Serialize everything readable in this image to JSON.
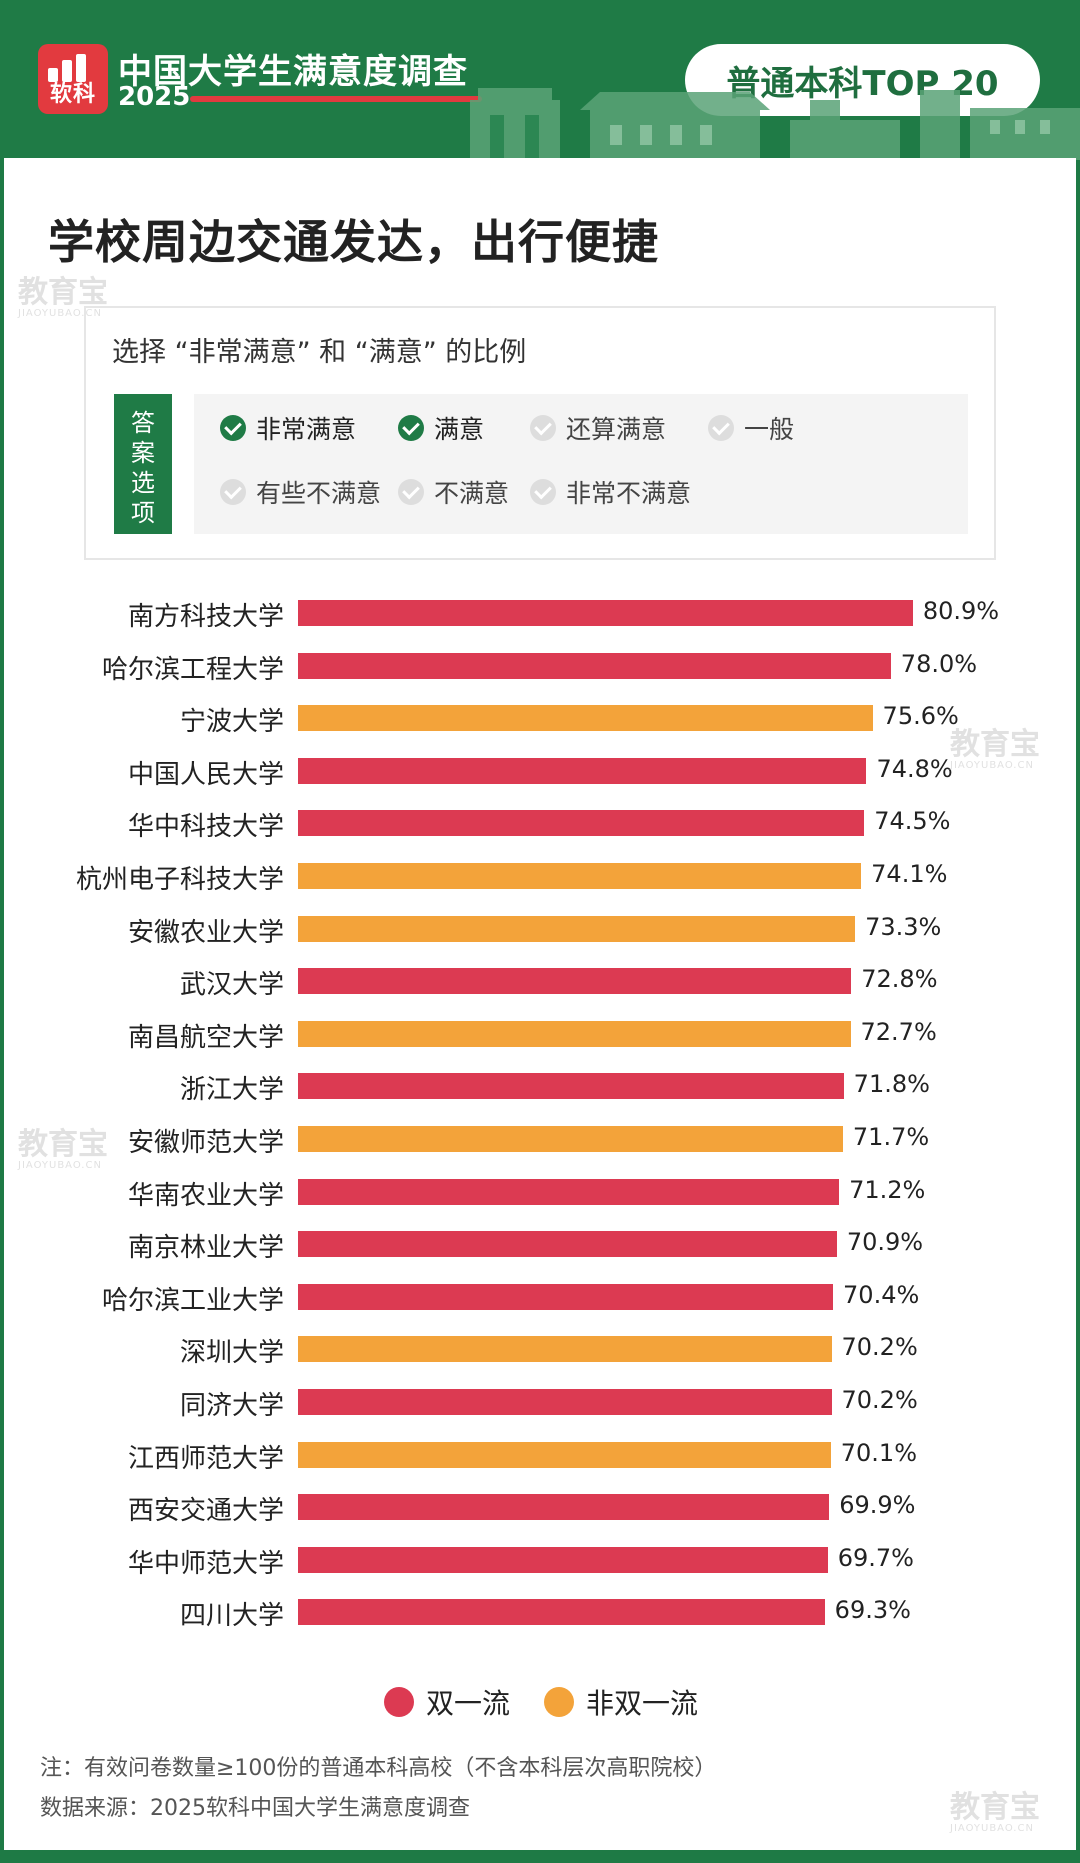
{
  "header": {
    "logo_text": "软科",
    "title": "中国大学生满意度调查",
    "year": "2025",
    "badge": "普通本科TOP 20"
  },
  "main_title": "学校周边交通发达，出行便捷",
  "question": {
    "text": "选择 “非常满意” 和 “满意” 的比例",
    "tag": "答案选项",
    "options": [
      {
        "label": "非常满意",
        "selected": true
      },
      {
        "label": "满意",
        "selected": true
      },
      {
        "label": "还算满意",
        "selected": false
      },
      {
        "label": "一般",
        "selected": false
      },
      {
        "label": "有些不满意",
        "selected": false
      },
      {
        "label": "不满意",
        "selected": false
      },
      {
        "label": "非常不满意",
        "selected": false
      }
    ]
  },
  "colors": {
    "double_first_class": "#dc3a52",
    "non_double_first_class": "#f3a33a",
    "brand_green": "#1f7b46",
    "brand_red": "#e23a3f"
  },
  "chart_data": {
    "type": "bar",
    "orientation": "horizontal",
    "categories": [
      "南方科技大学",
      "哈尔滨工程大学",
      "宁波大学",
      "中国人民大学",
      "华中科技大学",
      "杭州电子科技大学",
      "安徽农业大学",
      "武汉大学",
      "南昌航空大学",
      "浙江大学",
      "安徽师范大学",
      "华南农业大学",
      "南京林业大学",
      "哈尔滨工业大学",
      "深圳大学",
      "同济大学",
      "江西师范大学",
      "西安交通大学",
      "华中师范大学",
      "四川大学"
    ],
    "values": [
      80.9,
      78.0,
      75.6,
      74.8,
      74.5,
      74.1,
      73.3,
      72.8,
      72.7,
      71.8,
      71.7,
      71.2,
      70.9,
      70.4,
      70.2,
      70.2,
      70.1,
      69.9,
      69.7,
      69.3
    ],
    "value_labels": [
      "80.9%",
      "78.0%",
      "75.6%",
      "74.8%",
      "74.5%",
      "74.1%",
      "73.3%",
      "72.8%",
      "72.7%",
      "71.8%",
      "71.7%",
      "71.2%",
      "70.9%",
      "70.4%",
      "70.2%",
      "70.2%",
      "70.1%",
      "69.9%",
      "69.7%",
      "69.3%"
    ],
    "groups": [
      "双一流",
      "双一流",
      "非双一流",
      "双一流",
      "双一流",
      "非双一流",
      "非双一流",
      "双一流",
      "非双一流",
      "双一流",
      "非双一流",
      "双一流",
      "双一流",
      "双一流",
      "非双一流",
      "双一流",
      "非双一流",
      "双一流",
      "双一流",
      "双一流"
    ],
    "unit": "%",
    "legend": [
      {
        "name": "双一流",
        "color": "#dc3a52"
      },
      {
        "name": "非双一流",
        "color": "#f3a33a"
      }
    ],
    "legend_position": "bottom",
    "grid": false
  },
  "notes": {
    "note": "注：有效问卷数量≥100份的普通本科高校（不含本科层次高职院校）",
    "source": "数据来源：2025软科中国大学生满意度调查"
  },
  "watermark": {
    "text": "教育宝",
    "sub": "JIAOYUBAO.CN"
  }
}
